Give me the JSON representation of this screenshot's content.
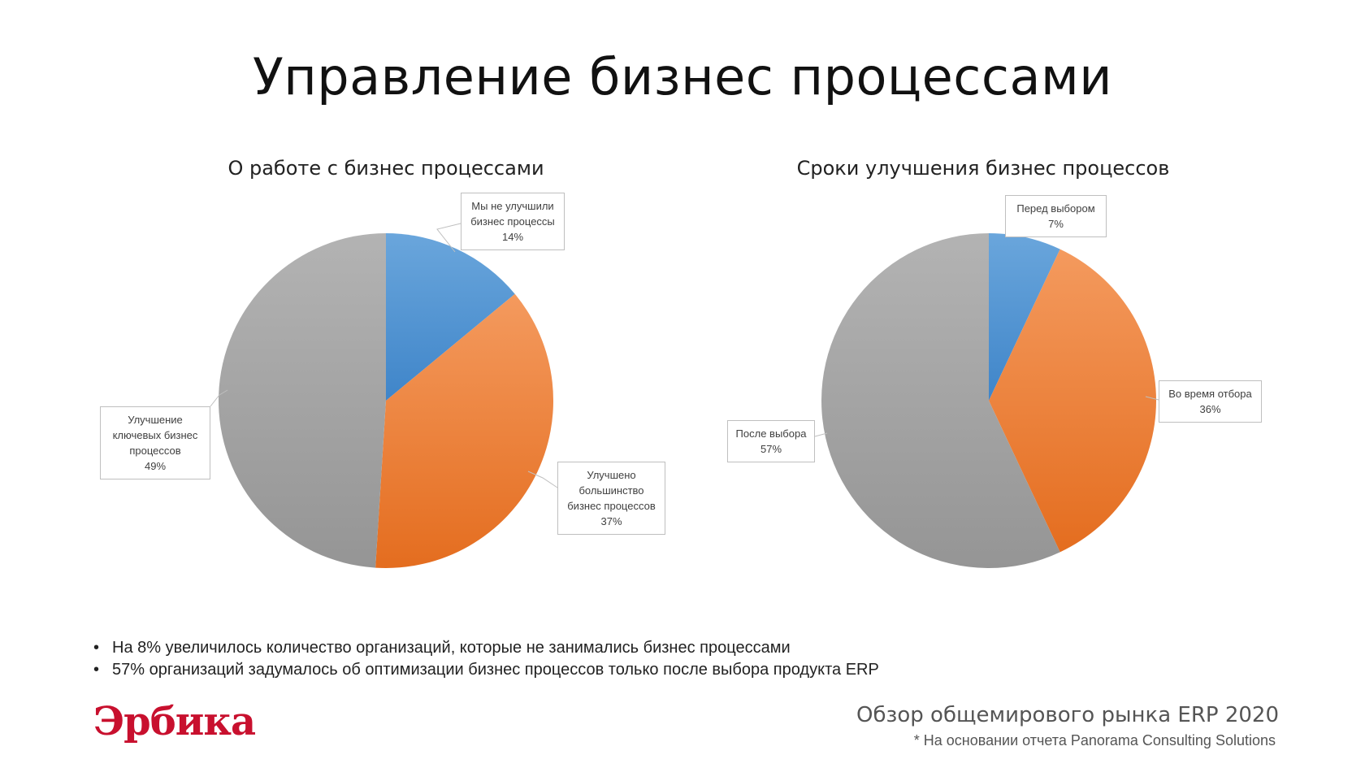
{
  "page": {
    "title": "Управление бизнес процессами",
    "bullets": [
      "На 8% увеличилось количество организаций, которые не занимались бизнес процессами",
      "57% организаций задумалось об оптимизации бизнес процессов только после выбора продукта ERP"
    ],
    "logo_text": "Эрбика",
    "footer_title": "Обзор общемирового рынка ERP 2020",
    "footer_note": "* На основании отчета Panorama Consulting Solutions"
  },
  "chart_data": [
    {
      "type": "pie",
      "title": "О работе с бизнес процессами",
      "slices": [
        {
          "label_lines": [
            "Мы не улучшили",
            "бизнес процессы"
          ],
          "value": 14,
          "value_text": "14%",
          "color": "#5b9bd5"
        },
        {
          "label_lines": [
            "Улучшено",
            "большинство",
            "бизнес процессов"
          ],
          "value": 37,
          "value_text": "37%",
          "color": "#ed7d31"
        },
        {
          "label_lines": [
            "Улучшение",
            "ключевых бизнес",
            "процессов"
          ],
          "value": 49,
          "value_text": "49%",
          "color": "#a5a5a5"
        }
      ]
    },
    {
      "type": "pie",
      "title": "Сроки улучшения бизнес процессов",
      "slices": [
        {
          "label_lines": [
            "Перед выбором"
          ],
          "value": 7,
          "value_text": "7%",
          "color": "#5b9bd5"
        },
        {
          "label_lines": [
            "Во время отбора"
          ],
          "value": 36,
          "value_text": "36%",
          "color": "#ed7d31"
        },
        {
          "label_lines": [
            "После выбора"
          ],
          "value": 57,
          "value_text": "57%",
          "color": "#a5a5a5"
        }
      ]
    }
  ]
}
